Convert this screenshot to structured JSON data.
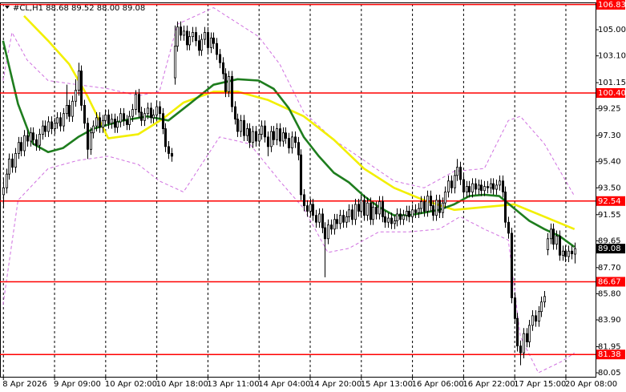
{
  "chart_data": {
    "type": "candlestick",
    "title": "#CL,H1 88.68 89.52 88.00 89.08",
    "background": "#ffffff",
    "up_color": "#ffffff",
    "down_color": "#000000",
    "outline_color": "#000000",
    "level_color": "#ff0000",
    "grid": true,
    "xlim": [
      -1,
      197
    ],
    "ylim": [
      79.76,
      106.87
    ],
    "xticks": [
      {
        "value": 0,
        "label": "8 Apr 2026"
      },
      {
        "value": 17,
        "label": "9 Apr 09:00"
      },
      {
        "value": 34,
        "label": "10 Apr 02:00"
      },
      {
        "value": 51,
        "label": "10 Apr 18:00"
      },
      {
        "value": 68,
        "label": "13 Apr 11:00"
      },
      {
        "value": 85,
        "label": "14 Apr 04:00"
      },
      {
        "value": 102,
        "label": "14 Apr 20:00"
      },
      {
        "value": 119,
        "label": "15 Apr 13:00"
      },
      {
        "value": 136,
        "label": "16 Apr 06:00"
      },
      {
        "value": 153,
        "label": "16 Apr 22:00"
      },
      {
        "value": 170,
        "label": "17 Apr 15:00"
      },
      {
        "value": 187,
        "label": "20 Apr 08:00"
      }
    ],
    "yticks": [
      {
        "value": 105,
        "label": "105.00"
      },
      {
        "value": 103.1,
        "label": "103.10"
      },
      {
        "value": 101.15,
        "label": "101.15"
      },
      {
        "value": 99.25,
        "label": "99.25"
      },
      {
        "value": 97.3,
        "label": "97.30"
      },
      {
        "value": 95.4,
        "label": "95.40"
      },
      {
        "value": 93.5,
        "label": "93.50"
      },
      {
        "value": 91.55,
        "label": "91.55"
      },
      {
        "value": 89.65,
        "label": "89.65"
      },
      {
        "value": 87.7,
        "label": "87.70"
      },
      {
        "value": 85.8,
        "label": "85.80"
      },
      {
        "value": 83.9,
        "label": "83.90"
      },
      {
        "value": 81.95,
        "label": "81.95"
      },
      {
        "value": 80.05,
        "label": "80.05"
      }
    ],
    "levels": [
      106.83,
      {
        "value": 100.4,
        "label": "100.40"
      },
      92.54,
      86.67,
      81.38
    ],
    "candles": [
      [
        93.0,
        94.2,
        92.0,
        93.5
      ],
      [
        93.5,
        94.9,
        93.1,
        94.5
      ],
      [
        94.5,
        96.0,
        94.1,
        95.6
      ],
      [
        95.6,
        96.0,
        94.6,
        95.0
      ],
      [
        95.0,
        96.4,
        94.6,
        96.0
      ],
      [
        96.0,
        97.2,
        95.6,
        96.8
      ],
      [
        96.8,
        97.2,
        95.8,
        96.2
      ],
      [
        96.2,
        97.7,
        95.8,
        97.3
      ],
      [
        97.3,
        97.7,
        96.5,
        96.9
      ],
      [
        96.9,
        97.9,
        96.5,
        97.5
      ],
      [
        97.5,
        97.9,
        96.6,
        97.0
      ],
      [
        97.0,
        97.4,
        96.2,
        96.6
      ],
      [
        96.6,
        97.8,
        96.2,
        97.4
      ],
      [
        97.4,
        98.4,
        97.0,
        98.0
      ],
      [
        98.0,
        98.4,
        97.2,
        97.6
      ],
      [
        97.6,
        98.7,
        97.2,
        98.3
      ],
      [
        98.3,
        98.7,
        97.4,
        97.8
      ],
      [
        97.8,
        98.6,
        97.4,
        98.2
      ],
      [
        98.2,
        99.0,
        97.8,
        98.6
      ],
      [
        98.6,
        99.0,
        97.6,
        98.0
      ],
      [
        98.0,
        99.3,
        97.6,
        98.9
      ],
      [
        98.9,
        101.0,
        98.5,
        99.5
      ],
      [
        99.5,
        99.9,
        98.3,
        98.7
      ],
      [
        98.7,
        100.2,
        98.3,
        99.8
      ],
      [
        99.8,
        101.4,
        99.4,
        100.6
      ],
      [
        100.6,
        102.6,
        100.2,
        102.0
      ],
      [
        102.0,
        102.4,
        99.1,
        99.5
      ],
      [
        99.5,
        99.9,
        97.8,
        98.2
      ],
      [
        98.2,
        98.6,
        95.6,
        96.3
      ],
      [
        96.3,
        97.9,
        95.9,
        97.5
      ],
      [
        97.5,
        98.4,
        97.1,
        98.0
      ],
      [
        98.0,
        99.0,
        97.6,
        98.6
      ],
      [
        98.6,
        99.0,
        97.5,
        97.9
      ],
      [
        97.9,
        98.8,
        97.5,
        98.4
      ],
      [
        98.4,
        99.2,
        98.0,
        98.8
      ],
      [
        98.8,
        99.2,
        97.8,
        98.2
      ],
      [
        98.2,
        98.9,
        97.8,
        98.5
      ],
      [
        98.5,
        98.9,
        97.5,
        97.9
      ],
      [
        97.9,
        98.7,
        97.5,
        98.3
      ],
      [
        98.3,
        99.3,
        97.9,
        98.9
      ],
      [
        98.9,
        99.3,
        98.0,
        98.4
      ],
      [
        98.4,
        98.8,
        97.7,
        98.1
      ],
      [
        98.1,
        99.1,
        97.7,
        98.7
      ],
      [
        98.7,
        99.6,
        98.3,
        99.2
      ],
      [
        99.2,
        100.6,
        98.8,
        100.3
      ],
      [
        100.3,
        100.7,
        98.6,
        99.0
      ],
      [
        99.0,
        99.4,
        98.0,
        98.4
      ],
      [
        98.4,
        99.3,
        98.0,
        98.9
      ],
      [
        98.9,
        99.7,
        98.5,
        99.3
      ],
      [
        99.3,
        99.7,
        98.2,
        98.6
      ],
      [
        98.6,
        99.2,
        98.2,
        98.8
      ],
      [
        98.8,
        99.8,
        98.4,
        99.4
      ],
      [
        99.4,
        99.8,
        98.5,
        98.9
      ],
      [
        98.9,
        99.3,
        97.4,
        97.8
      ],
      [
        97.8,
        98.2,
        96.1,
        96.5
      ],
      [
        96.5,
        96.9,
        95.6,
        96.0
      ],
      [
        96.0,
        96.4,
        95.4,
        95.8
      ],
      [
        101.5,
        105.3,
        101.0,
        103.8
      ],
      [
        103.8,
        105.6,
        103.4,
        105.2
      ],
      [
        105.2,
        105.6,
        104.2,
        104.6
      ],
      [
        104.6,
        105.3,
        104.2,
        104.9
      ],
      [
        104.9,
        105.3,
        103.5,
        103.9
      ],
      [
        103.9,
        104.9,
        103.5,
        104.5
      ],
      [
        104.5,
        105.2,
        104.1,
        104.8
      ],
      [
        104.8,
        105.2,
        103.8,
        104.2
      ],
      [
        104.2,
        104.6,
        103.1,
        103.5
      ],
      [
        103.5,
        104.7,
        103.1,
        104.3
      ],
      [
        104.3,
        105.2,
        103.9,
        104.8
      ],
      [
        104.8,
        105.2,
        103.3,
        103.7
      ],
      [
        103.7,
        104.8,
        103.3,
        104.4
      ],
      [
        104.4,
        104.8,
        103.6,
        104.0
      ],
      [
        104.0,
        104.4,
        102.8,
        103.2
      ],
      [
        103.2,
        103.6,
        102.2,
        102.6
      ],
      [
        102.6,
        103.0,
        101.4,
        101.8
      ],
      [
        101.8,
        102.2,
        100.1,
        100.5
      ],
      [
        100.5,
        102.0,
        100.1,
        101.6
      ],
      [
        101.6,
        102.0,
        99.0,
        99.4
      ],
      [
        99.4,
        99.8,
        98.1,
        98.5
      ],
      [
        98.5,
        98.9,
        97.2,
        97.6
      ],
      [
        97.6,
        98.8,
        97.2,
        98.4
      ],
      [
        98.4,
        98.8,
        96.9,
        97.3
      ],
      [
        97.3,
        98.2,
        96.9,
        97.8
      ],
      [
        97.8,
        98.2,
        96.4,
        96.8
      ],
      [
        96.8,
        98.0,
        96.4,
        97.6
      ],
      [
        97.6,
        98.0,
        96.5,
        96.9
      ],
      [
        96.9,
        97.8,
        96.5,
        97.4
      ],
      [
        97.4,
        98.4,
        97.0,
        98.0
      ],
      [
        98.0,
        98.4,
        96.8,
        97.2
      ],
      [
        97.2,
        97.6,
        95.8,
        96.5
      ],
      [
        96.5,
        98.0,
        96.1,
        97.6
      ],
      [
        97.6,
        98.0,
        96.6,
        97.0
      ],
      [
        97.0,
        98.2,
        96.6,
        97.8
      ],
      [
        97.8,
        98.2,
        96.5,
        96.9
      ],
      [
        96.9,
        97.9,
        96.5,
        97.5
      ],
      [
        97.5,
        97.9,
        96.7,
        97.1
      ],
      [
        97.1,
        97.5,
        96.0,
        96.4
      ],
      [
        96.4,
        97.6,
        96.0,
        97.2
      ],
      [
        97.2,
        97.6,
        96.4,
        96.8
      ],
      [
        96.8,
        97.2,
        95.5,
        95.9
      ],
      [
        95.9,
        96.3,
        92.6,
        93.0
      ],
      [
        93.0,
        93.4,
        91.8,
        92.2
      ],
      [
        92.2,
        92.6,
        91.4,
        91.8
      ],
      [
        91.8,
        92.7,
        91.4,
        92.3
      ],
      [
        92.3,
        92.7,
        91.1,
        91.5
      ],
      [
        91.5,
        91.9,
        90.6,
        91.0
      ],
      [
        91.0,
        92.0,
        90.6,
        91.6
      ],
      [
        91.6,
        92.0,
        90.2,
        90.6
      ],
      [
        90.6,
        91.0,
        87.0,
        89.8
      ],
      [
        89.8,
        91.2,
        89.4,
        90.8
      ],
      [
        90.8,
        91.2,
        90.1,
        90.5
      ],
      [
        90.5,
        91.6,
        90.1,
        91.2
      ],
      [
        91.2,
        91.6,
        90.5,
        90.9
      ],
      [
        90.9,
        91.9,
        90.5,
        91.5
      ],
      [
        91.5,
        91.9,
        90.6,
        91.0
      ],
      [
        91.0,
        91.8,
        90.6,
        91.4
      ],
      [
        91.4,
        92.3,
        91.0,
        91.9
      ],
      [
        91.9,
        92.3,
        90.8,
        91.2
      ],
      [
        91.2,
        92.7,
        90.8,
        92.3
      ],
      [
        92.3,
        92.7,
        91.4,
        91.8
      ],
      [
        91.8,
        93.0,
        91.4,
        92.6
      ],
      [
        92.6,
        93.0,
        91.1,
        91.5
      ],
      [
        91.5,
        92.8,
        91.1,
        92.4
      ],
      [
        92.4,
        92.8,
        90.8,
        91.2
      ],
      [
        91.2,
        92.5,
        90.8,
        92.1
      ],
      [
        92.1,
        92.5,
        91.2,
        91.6
      ],
      [
        91.6,
        92.9,
        91.2,
        92.5
      ],
      [
        92.5,
        92.9,
        91.0,
        91.4
      ],
      [
        91.4,
        91.8,
        90.6,
        91.0
      ],
      [
        91.0,
        91.7,
        90.6,
        91.3
      ],
      [
        91.3,
        91.7,
        90.5,
        90.9
      ],
      [
        90.9,
        91.5,
        90.5,
        91.1
      ],
      [
        91.1,
        92.0,
        90.7,
        91.6
      ],
      [
        91.6,
        92.0,
        90.8,
        91.2
      ],
      [
        91.2,
        91.9,
        90.8,
        91.5
      ],
      [
        91.5,
        92.2,
        91.1,
        91.8
      ],
      [
        91.8,
        92.2,
        91.0,
        91.4
      ],
      [
        91.4,
        92.3,
        91.0,
        91.9
      ],
      [
        91.9,
        92.3,
        91.3,
        91.7
      ],
      [
        91.7,
        92.4,
        91.3,
        92.0
      ],
      [
        92.0,
        92.9,
        91.6,
        92.5
      ],
      [
        92.5,
        92.9,
        91.4,
        91.8
      ],
      [
        91.8,
        93.3,
        91.4,
        92.9
      ],
      [
        92.9,
        93.3,
        91.8,
        92.2
      ],
      [
        92.2,
        92.6,
        91.1,
        91.5
      ],
      [
        91.5,
        93.0,
        91.1,
        92.6
      ],
      [
        92.6,
        93.0,
        91.3,
        91.7
      ],
      [
        91.7,
        92.8,
        91.3,
        92.4
      ],
      [
        92.4,
        93.6,
        92.0,
        93.2
      ],
      [
        93.2,
        94.4,
        92.8,
        94.0
      ],
      [
        94.0,
        94.4,
        93.1,
        93.5
      ],
      [
        93.5,
        94.8,
        93.1,
        94.4
      ],
      [
        94.4,
        95.6,
        94.0,
        95.0
      ],
      [
        95.0,
        95.4,
        93.7,
        94.1
      ],
      [
        94.1,
        94.5,
        92.8,
        93.2
      ],
      [
        93.2,
        94.0,
        92.8,
        93.6
      ],
      [
        93.6,
        94.0,
        92.8,
        93.2
      ],
      [
        93.2,
        94.2,
        92.8,
        93.8
      ],
      [
        93.8,
        94.2,
        93.0,
        93.4
      ],
      [
        93.4,
        94.1,
        93.0,
        93.7
      ],
      [
        93.7,
        94.1,
        92.9,
        93.3
      ],
      [
        93.3,
        94.0,
        92.9,
        93.6
      ],
      [
        93.6,
        94.0,
        93.1,
        93.5
      ],
      [
        93.5,
        94.2,
        93.1,
        93.8
      ],
      [
        93.8,
        94.2,
        93.0,
        93.4
      ],
      [
        93.4,
        94.1,
        93.0,
        93.7
      ],
      [
        93.7,
        94.4,
        93.3,
        94.0
      ],
      [
        94.0,
        94.4,
        92.8,
        93.2
      ],
      [
        93.2,
        93.6,
        90.6,
        91.0
      ],
      [
        91.0,
        91.4,
        89.8,
        90.2
      ],
      [
        90.2,
        90.6,
        85.1,
        85.5
      ],
      [
        85.5,
        85.9,
        83.6,
        84.0
      ],
      [
        84.0,
        84.4,
        81.6,
        82.0
      ],
      [
        82.0,
        82.4,
        80.6,
        81.5
      ],
      [
        81.5,
        83.3,
        81.1,
        82.9
      ],
      [
        82.9,
        83.3,
        81.9,
        82.3
      ],
      [
        82.3,
        83.9,
        81.9,
        83.5
      ],
      [
        83.5,
        84.6,
        83.1,
        84.2
      ],
      [
        84.2,
        84.6,
        83.4,
        83.8
      ],
      [
        83.8,
        84.9,
        83.4,
        84.5
      ],
      [
        84.5,
        85.6,
        84.1,
        85.2
      ],
      [
        85.2,
        86.0,
        84.8,
        85.6
      ],
      [
        89.0,
        90.2,
        88.6,
        89.8
      ],
      [
        89.8,
        90.9,
        89.4,
        90.5
      ],
      [
        90.5,
        90.9,
        89.0,
        89.4
      ],
      [
        89.4,
        90.4,
        89.0,
        90.0
      ],
      [
        90.0,
        90.4,
        88.2,
        88.6
      ],
      [
        88.6,
        89.3,
        88.2,
        88.9
      ],
      [
        88.9,
        89.3,
        88.1,
        88.5
      ],
      [
        88.5,
        89.3,
        88.1,
        88.9
      ],
      [
        88.9,
        89.3,
        88.3,
        88.7
      ],
      [
        88.68,
        89.52,
        88.0,
        89.08
      ]
    ],
    "series": [
      {
        "color": "#d070e0",
        "dashed": true,
        "x": [
          0,
          3,
          8,
          15,
          25,
          35,
          45,
          52,
          58,
          70,
          85,
          92,
          100,
          110,
          120,
          130,
          140,
          150,
          160,
          168,
          172,
          180,
          190
        ],
        "values": [
          101.3,
          104.8,
          102.8,
          101.3,
          101.0,
          100.7,
          100.2,
          100.5,
          105.4,
          106.6,
          104.5,
          102.5,
          99.0,
          97.0,
          95.5,
          94.0,
          93.5,
          94.7,
          94.9,
          98.4,
          98.7,
          96.7,
          92.9
        ]
      },
      {
        "color": "#d070e0",
        "dashed": true,
        "x": [
          0,
          5,
          15,
          25,
          35,
          45,
          52,
          60,
          72,
          82,
          92,
          100,
          108,
          115,
          125,
          135,
          145,
          152,
          160,
          168,
          172,
          178,
          186,
          190
        ],
        "values": [
          85.0,
          92.6,
          94.9,
          95.5,
          95.8,
          95.2,
          94.0,
          93.2,
          97.2,
          96.7,
          94.0,
          92.0,
          88.8,
          89.1,
          90.3,
          90.3,
          90.5,
          91.4,
          90.5,
          89.7,
          82.7,
          80.05,
          80.9,
          81.5
        ]
      },
      {
        "color": "#f2ef00",
        "dashed": false,
        "x": [
          7,
          15,
          22,
          28,
          35,
          45,
          53,
          60,
          70,
          78,
          88,
          100,
          110,
          120,
          130,
          140,
          150,
          160,
          170,
          180,
          190
        ],
        "values": [
          106.0,
          104.2,
          102.5,
          100.2,
          97.1,
          97.4,
          98.5,
          99.7,
          100.5,
          100.5,
          99.9,
          98.7,
          97.0,
          94.9,
          93.5,
          92.6,
          91.9,
          92.1,
          92.3,
          91.4,
          90.5
        ]
      },
      {
        "color": "#1e7d1e",
        "dashed": false,
        "x": [
          0,
          5,
          10,
          15,
          20,
          25,
          30,
          40,
          48,
          55,
          62,
          70,
          78,
          85,
          90,
          95,
          100,
          105,
          110,
          115,
          120,
          125,
          130,
          135,
          140,
          145,
          150,
          155,
          160,
          165,
          170,
          175,
          180,
          185,
          190
        ],
        "values": [
          104.2,
          99.6,
          96.7,
          96.1,
          96.4,
          97.2,
          97.8,
          98.4,
          98.7,
          98.4,
          99.6,
          101.0,
          101.4,
          101.3,
          100.7,
          99.3,
          97.2,
          95.8,
          94.6,
          93.9,
          92.9,
          92.1,
          91.5,
          91.5,
          91.7,
          91.9,
          92.3,
          92.9,
          93.0,
          92.9,
          92.0,
          91.1,
          90.5,
          90.0,
          89.2
        ]
      }
    ]
  }
}
